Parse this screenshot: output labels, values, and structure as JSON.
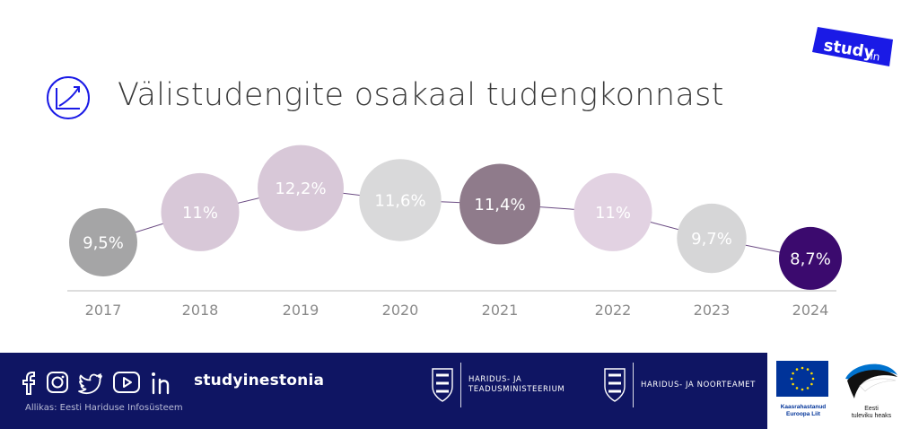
{
  "header": {
    "title": "Välistudengite osakaal tudengkonnast",
    "badge_text": "study",
    "badge_suffix": "in"
  },
  "chart_data": {
    "type": "scatter",
    "title": "Välistudengite osakaal tudengkonnast",
    "categories": [
      "2017",
      "2018",
      "2019",
      "2020",
      "2021",
      "2022",
      "2023",
      "2024"
    ],
    "values": [
      9.5,
      11,
      12.2,
      11.6,
      11.4,
      11,
      9.7,
      8.7
    ],
    "data_labels": [
      "9,5%",
      "11%",
      "12,2%",
      "11,6%",
      "11,4%",
      "11%",
      "9,7%",
      "8,7%"
    ],
    "bubble_colors": [
      "#a5a5a6",
      "#d8c8d8",
      "#d8c8d8",
      "#d9d9da",
      "#8f7b8b",
      "#e2d2e2",
      "#d6d6d7",
      "#3b0a6e"
    ],
    "line_color": "#6a4a82",
    "axis_color": "#bbbbbb",
    "tick_color": "#8a8a8a",
    "grid": false,
    "legend": "none"
  },
  "footer": {
    "brand": "studyinestonia",
    "source": "Allikas: Eesti Hariduse Infosüsteem",
    "ministry1_line1": "Haridus- ja",
    "ministry1_line2": "Teadusministeerium",
    "ministry2": "Haridus- ja Noorteamet",
    "eu_line1": "Kaasrahastanud",
    "eu_line2": "Euroopa Liit",
    "ee_line1": "Eesti",
    "ee_line2": "tuleviku heaks"
  },
  "colors": {
    "brand_blue": "#1a1ae6",
    "footer_bg": "#0f1563",
    "eu_blue": "#003399",
    "eu_star": "#ffdd00"
  },
  "icons": [
    "facebook-icon",
    "instagram-icon",
    "twitter-icon",
    "youtube-icon",
    "linkedin-icon",
    "growth-chart-icon",
    "coat-of-arms-icon",
    "eu-flag-icon",
    "estonia-swallow-icon"
  ]
}
